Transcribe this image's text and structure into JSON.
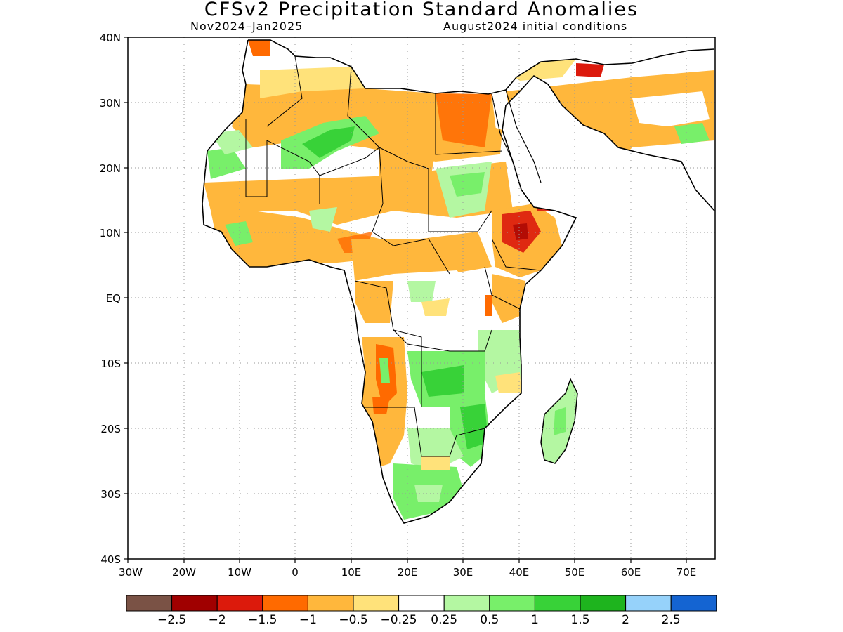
{
  "title": "CFSv2 Precipitation Standard Anomalies",
  "subtitle_left": "Nov2024–Jan2025",
  "subtitle_right": "August2024 initial conditions",
  "axes": {
    "lat_labels": [
      "40N",
      "30N",
      "20N",
      "10N",
      "EQ",
      "10S",
      "20S",
      "30S",
      "40S"
    ],
    "lon_labels": [
      "30W",
      "20W",
      "10W",
      "0",
      "10E",
      "20E",
      "30E",
      "40E",
      "50E",
      "60E",
      "70E"
    ],
    "lat_range": [
      -40,
      40
    ],
    "lon_range": [
      -30,
      75
    ],
    "gridlines": "dotted"
  },
  "colorbar": {
    "colors": [
      "#7a5245",
      "#a00000",
      "#dc1a0c",
      "#ff6a00",
      "#ffb73c",
      "#ffe27a",
      "#ffffff",
      "#b4f7a2",
      "#78ef6a",
      "#38d238",
      "#1eb41e",
      "#96d2fa",
      "#1464d2"
    ],
    "labels": [
      "−2.5",
      "−2",
      "−1.5",
      "−1",
      "−0.5",
      "−0.25",
      "0.25",
      "0.5",
      "1",
      "1.5",
      "2",
      "2.5"
    ]
  },
  "colors": {
    "wet": "#38d238",
    "dry": "#ff6a00",
    "coast": "#000000"
  }
}
